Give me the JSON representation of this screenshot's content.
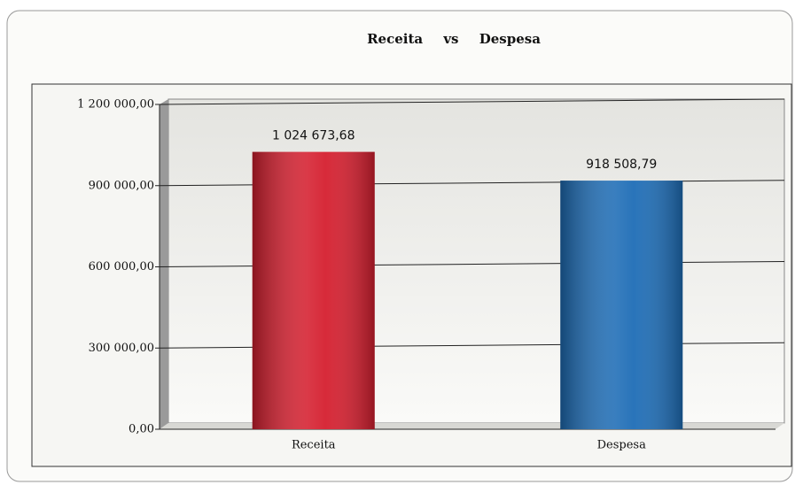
{
  "chart_data": {
    "type": "bar",
    "title": "Receita vs Despesa",
    "categories": [
      "Receita",
      "Despesa"
    ],
    "values": [
      1024673.68,
      918508.79
    ],
    "value_labels": [
      "1 024 673,68",
      "918 508,79"
    ],
    "colors": [
      "#d51f2f",
      "#1e6db6"
    ],
    "ylim": [
      0,
      1200000
    ],
    "yticks": [
      {
        "value": 0,
        "label": "0,00"
      },
      {
        "value": 300000,
        "label": "300 000,00"
      },
      {
        "value": 600000,
        "label": "600 000,00"
      },
      {
        "value": 900000,
        "label": "900 000,00"
      },
      {
        "value": 1200000,
        "label": "1 200 000,00"
      }
    ],
    "grid": true
  }
}
